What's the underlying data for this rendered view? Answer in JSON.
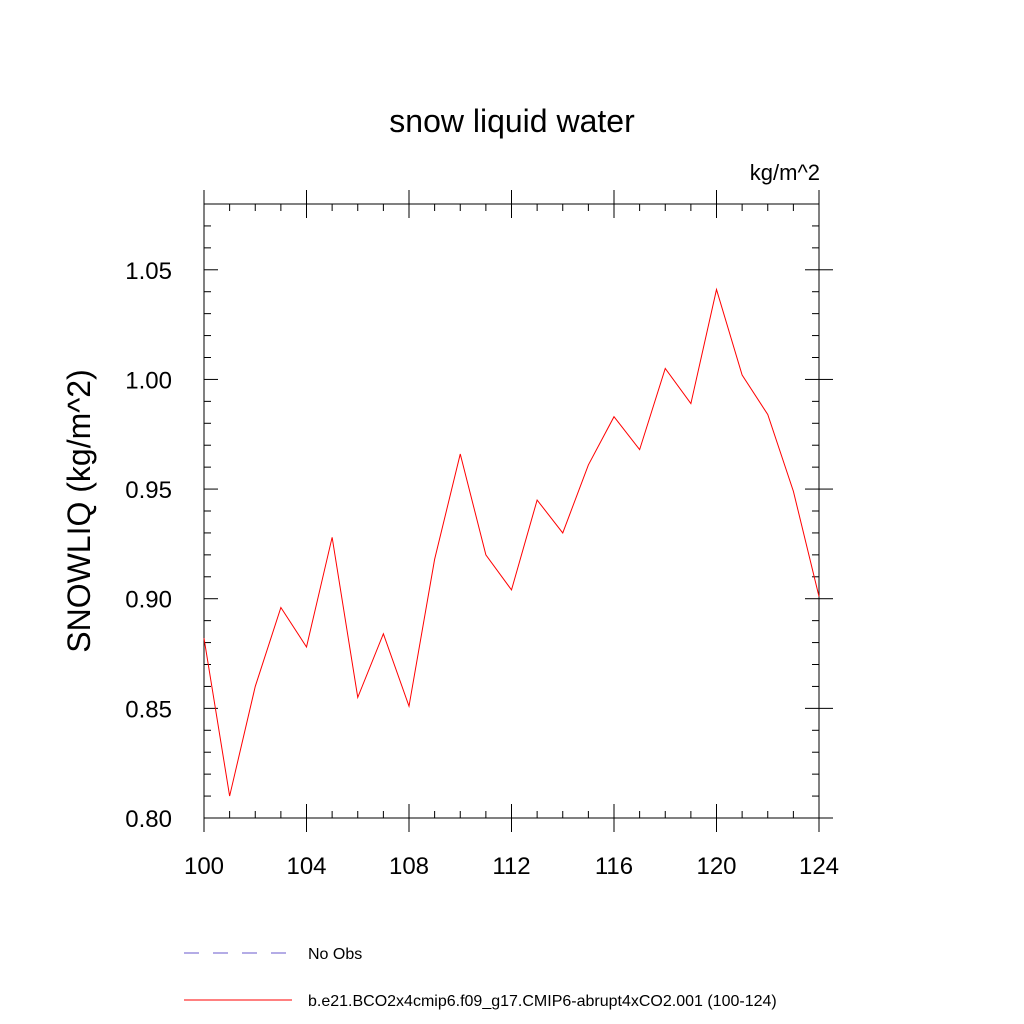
{
  "chart_data": {
    "type": "line",
    "title": "snow liquid water",
    "units_label": "kg/m^2",
    "xlabel": "",
    "ylabel": "SNOWLIQ  (kg/m^2)",
    "xlim": [
      100,
      124
    ],
    "ylim": [
      0.8,
      1.08
    ],
    "x_ticks": [
      100,
      104,
      108,
      112,
      116,
      120,
      124
    ],
    "x_tick_labels": [
      "100",
      "104",
      "108",
      "112",
      "116",
      "120",
      "124"
    ],
    "x_minor_step": 1,
    "y_ticks": [
      0.8,
      0.85,
      0.9,
      0.95,
      1.0,
      1.05
    ],
    "y_tick_labels": [
      "0.80",
      "0.85",
      "0.90",
      "0.95",
      "1.00",
      "1.05"
    ],
    "y_minor_step": 0.01,
    "grid": false,
    "legend_position": "bottom",
    "x": [
      100,
      101,
      102,
      103,
      104,
      105,
      106,
      107,
      108,
      109,
      110,
      111,
      112,
      113,
      114,
      115,
      116,
      117,
      118,
      119,
      120,
      121,
      122,
      123,
      124
    ],
    "series": [
      {
        "name": "b.e21.BCO2x4cmip6.f09_g17.CMIP6-abrupt4xCO2.001 (100-124)",
        "color": "#ff0000",
        "style": "solid",
        "values": [
          0.882,
          0.81,
          0.86,
          0.896,
          0.878,
          0.928,
          0.855,
          0.884,
          0.851,
          0.918,
          0.966,
          0.92,
          0.904,
          0.945,
          0.93,
          0.961,
          0.983,
          0.968,
          1.005,
          0.989,
          1.041,
          1.002,
          0.984,
          0.949,
          0.901
        ]
      }
    ],
    "legend": [
      {
        "label": "No Obs",
        "color": "#6a5acd",
        "style": "dashed"
      },
      {
        "label": "b.e21.BCO2x4cmip6.f09_g17.CMIP6-abrupt4xCO2.001 (100-124)",
        "color": "#ff0000",
        "style": "solid"
      }
    ]
  }
}
